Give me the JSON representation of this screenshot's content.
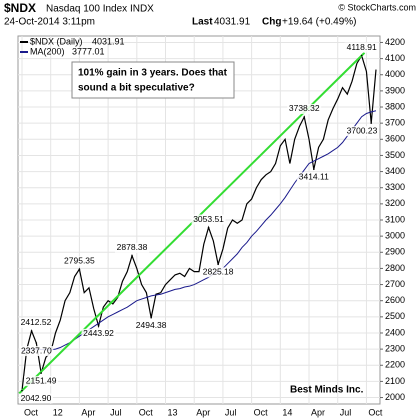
{
  "chart_data": {
    "type": "line",
    "symbol": "$NDX",
    "title": "Nasdaq 100 Index INDX",
    "copyright": "© StockCharts.com",
    "date": "24-Oct-2014 3:11pm",
    "last_label": "Last",
    "change_label": "Chg",
    "change": "+19.64 (+0.49%)",
    "annotation": [
      "101% gain in 3 years. Does that",
      "sound a bit speculative?"
    ],
    "annotation_color": "#1a1aff",
    "signature": "Best Minds Inc.",
    "categories": [
      "Oct",
      null,
      null,
      null,
      null,
      null,
      "12",
      null,
      null,
      null,
      null,
      null,
      "Apr",
      null,
      null,
      null,
      null,
      null,
      "Jul",
      null,
      null,
      null,
      null,
      null,
      "Oct",
      null,
      null,
      null,
      null,
      null,
      "13",
      null,
      null,
      null,
      null,
      null,
      "Apr",
      null,
      null,
      null,
      null,
      null,
      "Jul",
      null,
      null,
      null,
      null,
      null,
      "Oct",
      null,
      null,
      null,
      null,
      null,
      "14",
      null,
      null,
      null,
      null,
      null,
      "Apr",
      null,
      null,
      null,
      null,
      null,
      "Jul",
      null,
      null,
      null,
      null,
      null,
      "Oct",
      null,
      null
    ],
    "series": [
      {
        "name": "$NDX (Daily)",
        "color": "#000000",
        "values": [
          2042.9,
          2300,
          2412.52,
          2337.7,
          2151.49,
          2250,
          2280,
          2400,
          2480,
          2600,
          2650,
          2750,
          2795.35,
          2650,
          2680,
          2550,
          2443.92,
          2560,
          2600,
          2580,
          2620,
          2720,
          2780,
          2878.38,
          2800,
          2700,
          2650,
          2494.38,
          2640,
          2650,
          2700,
          2730,
          2760,
          2770,
          2750,
          2800,
          2780,
          2780,
          2950,
          3053.51,
          2970,
          2825.18,
          2920,
          3050,
          3100,
          3080,
          3100,
          3200,
          3230,
          3300,
          3350,
          3380,
          3400,
          3450,
          3560,
          3600,
          3450,
          3600,
          3680,
          3738.32,
          3600,
          3414.11,
          3550,
          3600,
          3720,
          3790,
          3850,
          3920,
          3880,
          3960,
          4070,
          4118.91,
          4020,
          3700.23,
          4031.91
        ],
        "value_labels": [
          "2042.90",
          null,
          "2412.52",
          "2337.70",
          "2151.49",
          null,
          null,
          null,
          null,
          null,
          null,
          null,
          "2795.35",
          null,
          null,
          null,
          "2443.92",
          null,
          null,
          null,
          null,
          null,
          null,
          "2878.38",
          null,
          null,
          null,
          "2494.38",
          null,
          null,
          null,
          null,
          null,
          null,
          null,
          null,
          null,
          null,
          null,
          "3053.51",
          null,
          "2825.18",
          null,
          null,
          null,
          null,
          null,
          null,
          null,
          null,
          null,
          null,
          null,
          null,
          null,
          null,
          null,
          null,
          null,
          "3738.32",
          null,
          "3414.11",
          null,
          null,
          null,
          null,
          null,
          null,
          null,
          null,
          null,
          "4118.91",
          null,
          "3700.23",
          null
        ]
      },
      {
        "name": "MA(200)",
        "color": "#1a1a8c",
        "values": [
          2290,
          2295,
          2300,
          2300,
          2298,
          2296,
          2295,
          2300,
          2310,
          2325,
          2340,
          2360,
          2380,
          2400,
          2420,
          2440,
          2460,
          2480,
          2500,
          2515,
          2530,
          2545,
          2560,
          2580,
          2600,
          2610,
          2620,
          2630,
          2635,
          2640,
          2650,
          2660,
          2670,
          2675,
          2685,
          2690,
          2700,
          2715,
          2730,
          2745,
          2765,
          2780,
          2800,
          2830,
          2860,
          2890,
          2930,
          2960,
          3000,
          3030,
          3065,
          3100,
          3130,
          3165,
          3200,
          3240,
          3285,
          3330,
          3370,
          3410,
          3450,
          3465,
          3480,
          3495,
          3510,
          3530,
          3550,
          3580,
          3620,
          3660,
          3700,
          3740,
          3760,
          3770,
          3777.01
        ]
      }
    ],
    "trendline": {
      "color": "#33dd33"
    },
    "ylim": [
      1960,
      4240
    ],
    "yticks": [
      2000,
      2100,
      2200,
      2300,
      2400,
      2500,
      2600,
      2700,
      2800,
      2900,
      3000,
      3100,
      3200,
      3300,
      3400,
      3500,
      3600,
      3700,
      3800,
      3900,
      4000,
      4100,
      4200
    ],
    "grid": true
  }
}
